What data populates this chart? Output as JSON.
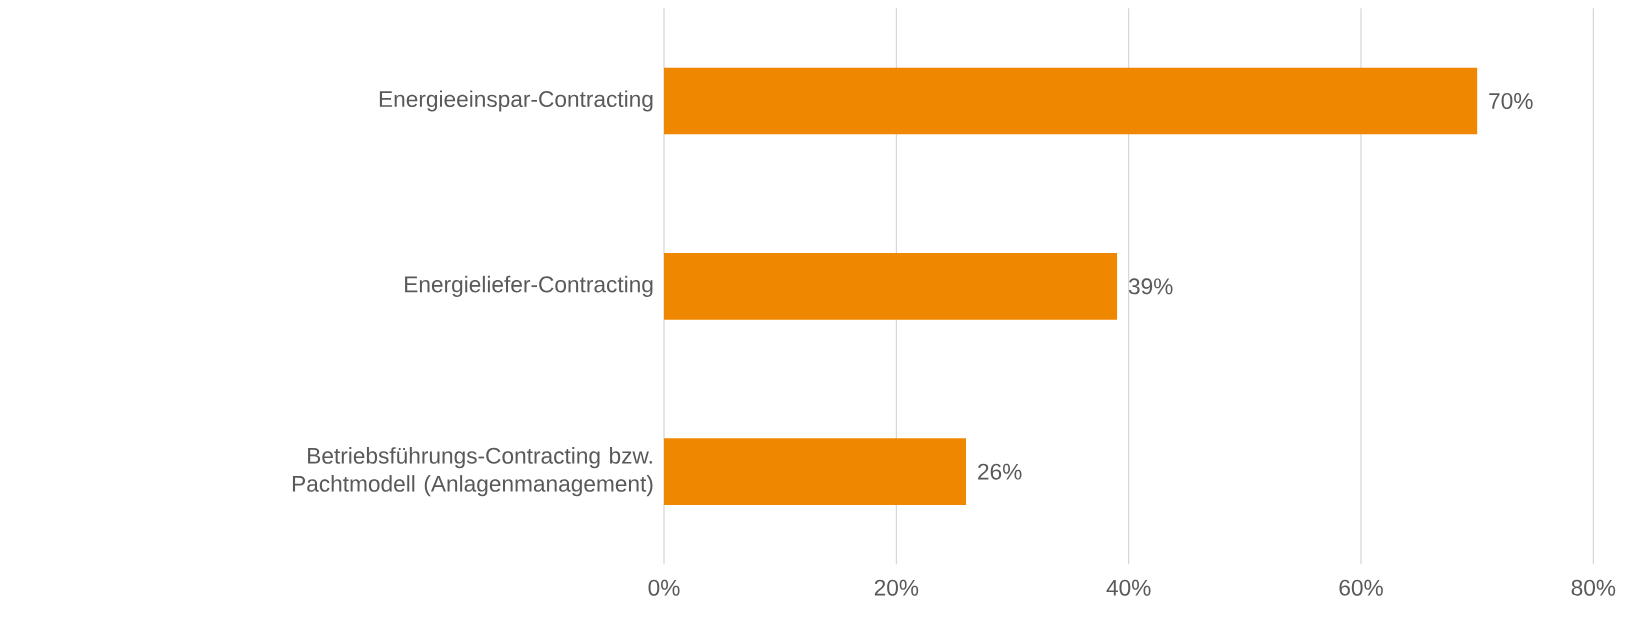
{
  "chart_data": {
    "type": "bar",
    "orientation": "horizontal",
    "categories": [
      "Energieeinspar-Contracting",
      "Energieliefer-Contracting",
      "Betriebsführungs-Contracting bzw. Pachtmodell (Anlagenmanagement)"
    ],
    "values": [
      70,
      39,
      26
    ],
    "value_labels": [
      "70%",
      "39%",
      "26%"
    ],
    "color": "#f08700",
    "xlim": [
      0,
      80
    ],
    "xticks": [
      {
        "value": 0,
        "label": "0%"
      },
      {
        "value": 20,
        "label": "20%"
      },
      {
        "value": 40,
        "label": "40%"
      },
      {
        "value": 60,
        "label": "60%"
      },
      {
        "value": 80,
        "label": "80%"
      }
    ],
    "grid": "x"
  }
}
